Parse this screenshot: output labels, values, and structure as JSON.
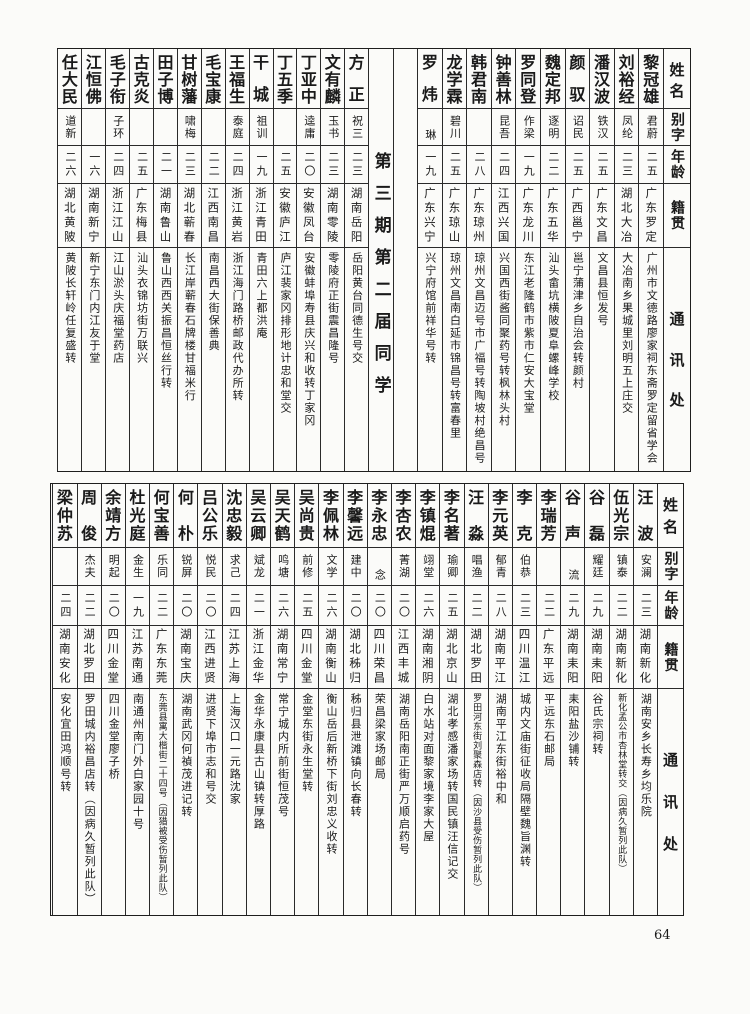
{
  "header": {
    "name": "姓名",
    "alias": "别字",
    "age": "年龄",
    "origin": "籍贯",
    "address": "通讯处"
  },
  "top": {
    "section_title": "第三期第二届同学",
    "right_people": [
      {
        "name": "黎冠雄",
        "alias": "君蔚",
        "age": "二五",
        "origin": "广东罗定",
        "address": "广州市文德路廖家祠东斋罗定留省学会"
      },
      {
        "name": "刘裕经",
        "alias": "凤纶",
        "age": "二三",
        "origin": "湖北大冶",
        "address": "大冶南乡果城里刘明五上庄交"
      },
      {
        "name": "潘汉波",
        "alias": "铁汉",
        "age": "二五",
        "origin": "广东文昌",
        "address": "文昌县恒发号"
      },
      {
        "name": "颜驭",
        "alias": "诏民",
        "age": "二五",
        "origin": "广西邕宁",
        "address": "邕宁蒲津乡自治会转颜村"
      },
      {
        "name": "魏定邦",
        "alias": "逐明",
        "age": "二二",
        "origin": "广东五华",
        "address": "汕头畲坑横陂夏阜螺峰学校"
      },
      {
        "name": "罗同登",
        "alias": "作梁",
        "age": "一九",
        "origin": "广东龙川",
        "address": "东江老隆鹤市紫市仁安大宝堂"
      },
      {
        "name": "钟善林",
        "alias": "昆吾",
        "age": "二四",
        "origin": "江西兴国",
        "address": "兴国西街酱同聚药号转枫林头村"
      },
      {
        "name": "韩君南",
        "alias": "",
        "age": "二八",
        "origin": "广东琼州",
        "address": "琼州文昌迈号市广福号转陶坡村绝昌号"
      },
      {
        "name": "龙学霖",
        "alias": "碧川",
        "age": "二五",
        "origin": "广东琼山",
        "address": "琼州文昌南白延市锦昌号转富春里"
      },
      {
        "name": "罗炜",
        "alias": "琳",
        "age": "一九",
        "origin": "广东兴宁",
        "address": "兴宁府馆前祥华号转"
      }
    ],
    "left_people": [
      {
        "name": "方正",
        "alias": "祝三",
        "age": "二三",
        "origin": "湖南岳阳",
        "address": "岳阳黄台同德生号交"
      },
      {
        "name": "文有麟",
        "alias": "玉书",
        "age": "二三",
        "origin": "湖南零陵",
        "address": "零陵府正街震昌隆号"
      },
      {
        "name": "丁亚中",
        "alias": "逵庸",
        "age": "二〇",
        "origin": "安徽凤台",
        "address": "安徽蚌埠寿县庆兴和收转丁家冈"
      },
      {
        "name": "丁五季",
        "alias": "",
        "age": "二五",
        "origin": "安徽庐江",
        "address": "庐江裴家冈排形地计忠和堂交"
      },
      {
        "name": "干城",
        "alias": "祖训",
        "age": "一九",
        "origin": "浙江青田",
        "address": "青田六上都洪庵"
      },
      {
        "name": "王福生",
        "alias": "泰庭",
        "age": "二四",
        "origin": "浙江黄岩",
        "address": "浙江海门路桥邮政代办所转"
      },
      {
        "name": "毛宝康",
        "alias": "",
        "age": "二二",
        "origin": "江西南昌",
        "address": "南昌西大街保善典"
      },
      {
        "name": "甘树藩",
        "alias": "啸梅",
        "age": "二三",
        "origin": "湖北蕲春",
        "address": "长江岸蕲春石牌楼甘福米行"
      },
      {
        "name": "田子博",
        "alias": "",
        "age": "二一",
        "origin": "湖南鲁山",
        "address": "鲁山西西关振昌恒丝行转"
      },
      {
        "name": "古克炎",
        "alias": "",
        "age": "二五",
        "origin": "广东梅县",
        "address": "汕头衣锦坊街万联兴"
      },
      {
        "name": "毛子衔",
        "alias": "子环",
        "age": "二四",
        "origin": "浙江江山",
        "address": "江山淤头庆福堂药店"
      },
      {
        "name": "江恒佛",
        "alias": "",
        "age": "一六",
        "origin": "湖南新宁",
        "address": "新宁东门内江友于堂"
      },
      {
        "name": "任大民",
        "alias": "道新",
        "age": "二六",
        "origin": "湖北黄陂",
        "address": "黄陂长轩岭任复盛转"
      }
    ]
  },
  "bottom": {
    "people": [
      {
        "name": "汪波",
        "alias": "安澜",
        "age": "二三",
        "origin": "湖南新化",
        "address": "湖南安乡长寿乡均乐院"
      },
      {
        "name": "伍光宗",
        "alias": "镇泰",
        "age": "二二",
        "origin": "湖南新化",
        "address": "新化孟公市杏林堂转交（因病久暂列此队）"
      },
      {
        "name": "谷磊",
        "alias": "耀廷",
        "age": "二九",
        "origin": "湖南耒阳",
        "address": "谷氏宗祠转"
      },
      {
        "name": "谷声",
        "alias": "流",
        "age": "二九",
        "origin": "湖南耒阳",
        "address": "耒阳盐沙铺转"
      },
      {
        "name": "李瑞芳",
        "alias": "",
        "age": "二二",
        "origin": "广东平远",
        "address": "平远东石邮局"
      },
      {
        "name": "李克",
        "alias": "伯恭",
        "age": "二三",
        "origin": "四川温江",
        "address": "城内文庙街征收局隔壁魏旨渊转"
      },
      {
        "name": "李元英",
        "alias": "郁青",
        "age": "二八",
        "origin": "湖南平江",
        "address": "湖南平江东街裕中和"
      },
      {
        "name": "汪淼",
        "alias": "唱渔",
        "age": "二二",
        "origin": "湖北罗田",
        "address": "罗田河东街刘聚森店转（因沙县受伤暂列此队）"
      },
      {
        "name": "李名著",
        "alias": "瑜卿",
        "age": "二五",
        "origin": "湖北京山",
        "address": "湖北孝感潘家场转国民镇汪信记交"
      },
      {
        "name": "李镇焜",
        "alias": "翊堂",
        "age": "二六",
        "origin": "湖南湘阴",
        "address": "白水站对面黎家境李家大屋"
      },
      {
        "name": "李杏农",
        "alias": "菁湖",
        "age": "二〇",
        "origin": "江西丰城",
        "address": "湖南岳阳南正街严万顺启药号"
      },
      {
        "name": "李永忠",
        "alias": "念",
        "age": "二〇",
        "origin": "四川荣昌",
        "address": "荣昌梁家场邮局"
      },
      {
        "name": "李馨远",
        "alias": "建中",
        "age": "二〇",
        "origin": "湖北秭归",
        "address": "秭归县泄滩镇向长春转"
      },
      {
        "name": "李佩林",
        "alias": "文学",
        "age": "二六",
        "origin": "湖南衡山",
        "address": "衡山岳后新桥下街刘忠义收转"
      },
      {
        "name": "吴尚贵",
        "alias": "前修",
        "age": "二五",
        "origin": "四川金堂",
        "address": "金堂东街永生堂转"
      },
      {
        "name": "吴天鹤",
        "alias": "鸣塘",
        "age": "二六",
        "origin": "湖南常宁",
        "address": "常宁城内所前街恒茂号"
      },
      {
        "name": "吴云卿",
        "alias": "斌龙",
        "age": "二一",
        "origin": "浙江金华",
        "address": "金华永康县古山镇转厚路"
      },
      {
        "name": "沈忠毅",
        "alias": "求己",
        "age": "二四",
        "origin": "江苏上海",
        "address": "上海汉口一元路沈家"
      },
      {
        "name": "吕公乐",
        "alias": "悦民",
        "age": "二〇",
        "origin": "江西进贤",
        "address": "进贤下埠市志和号交"
      },
      {
        "name": "何朴",
        "alias": "锐屏",
        "age": "二〇",
        "origin": "湖南宝庆",
        "address": "湖南武冈何禎茂进记转"
      },
      {
        "name": "何宝善",
        "alias": "乐同",
        "age": "二二",
        "origin": "广东东莞",
        "address": "东莞县寓大楷街二十四号（因猎被受伤暂列此队）"
      },
      {
        "name": "杜光庭",
        "alias": "金生",
        "age": "一九",
        "origin": "江苏南通",
        "address": "南通州南门外白家园十号"
      },
      {
        "name": "余靖方",
        "alias": "明起",
        "age": "二〇",
        "origin": "四川金堂",
        "address": "四川金堂廖子桥"
      },
      {
        "name": "周俊",
        "alias": "杰夫",
        "age": "二二",
        "origin": "湖北罗田",
        "address": "罗田城内裕昌店转（因病久暂列此队）"
      },
      {
        "name": "梁仲苏",
        "alias": "",
        "age": "二四",
        "origin": "湖南安化",
        "address": "安化宜田鸿顺号转"
      }
    ]
  },
  "page_number": "64"
}
